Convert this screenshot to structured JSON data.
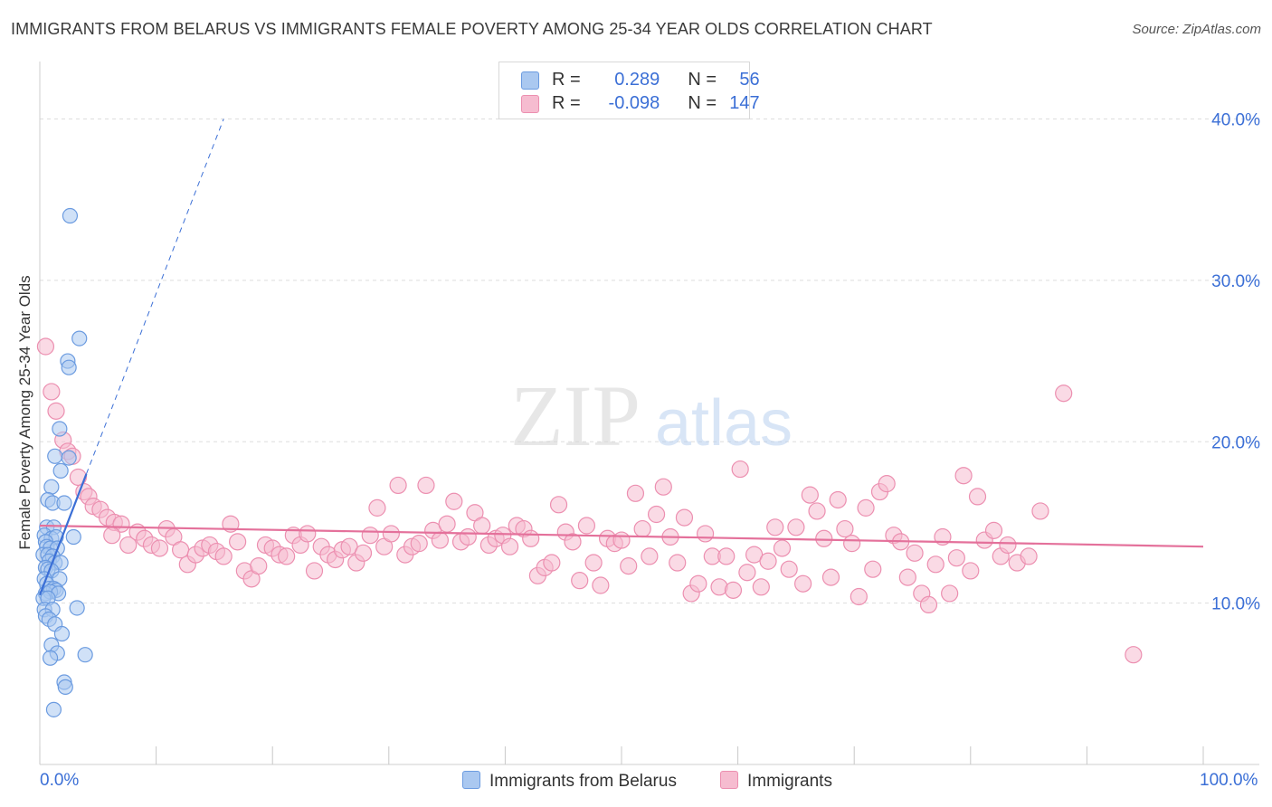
{
  "title": "IMMIGRANTS FROM BELARUS VS IMMIGRANTS FEMALE POVERTY AMONG 25-34 YEAR OLDS CORRELATION CHART",
  "source": "Source: ZipAtlas.com",
  "watermark": {
    "zip": "ZIP",
    "atlas": "atlas"
  },
  "legend": {
    "belarus": {
      "r_label": "R =",
      "r_value": "0.289",
      "n_label": "N =",
      "n_value": "56"
    },
    "immigrants": {
      "r_label": "R =",
      "r_value": "-0.098",
      "n_label": "N =",
      "n_value": "147"
    }
  },
  "bottom_legend": {
    "belarus": "Immigrants from Belarus",
    "immigrants": "Immigrants"
  },
  "colors": {
    "belarus_fill": "#aac8f0",
    "belarus_stroke": "#6b9be0",
    "belarus_line": "#3b6fd6",
    "immigrants_fill": "#f6bcd0",
    "immigrants_stroke": "#ec8fb0",
    "immigrants_line": "#e4719b",
    "tick_label": "#3b6fd6",
    "grid": "#dddddd"
  },
  "chart_data": {
    "type": "scatter",
    "title": "IMMIGRANTS FROM BELARUS VS IMMIGRANTS FEMALE POVERTY AMONG 25-34 YEAR OLDS CORRELATION CHART",
    "xlabel": "",
    "ylabel": "Female Poverty Among 25-34 Year Olds",
    "xlim": [
      0,
      100
    ],
    "ylim": [
      0,
      43
    ],
    "x_tick_labels": [
      "0.0%",
      "100.0%"
    ],
    "y_ticks": [
      10,
      20,
      30,
      40
    ],
    "y_tick_labels": [
      "10.0%",
      "20.0%",
      "30.0%",
      "40.0%"
    ],
    "grid": true,
    "series": [
      {
        "name": "Immigrants from Belarus",
        "r": 0.289,
        "n": 56,
        "trend_solid": {
          "x": [
            0.0,
            4.0
          ],
          "y": [
            10.5,
            18.0
          ]
        },
        "trend_dashed": {
          "x": [
            4.0,
            15.8
          ],
          "y": [
            18.0,
            40.0
          ]
        },
        "points": [
          [
            2.6,
            34.0
          ],
          [
            3.4,
            26.4
          ],
          [
            2.4,
            25.0
          ],
          [
            2.5,
            24.6
          ],
          [
            1.7,
            20.8
          ],
          [
            1.3,
            19.1
          ],
          [
            2.5,
            19.0
          ],
          [
            1.8,
            18.2
          ],
          [
            1.0,
            17.2
          ],
          [
            0.7,
            16.4
          ],
          [
            1.1,
            16.2
          ],
          [
            2.1,
            16.2
          ],
          [
            0.6,
            14.7
          ],
          [
            1.2,
            14.7
          ],
          [
            0.4,
            14.2
          ],
          [
            1.0,
            14.0
          ],
          [
            1.4,
            14.1
          ],
          [
            2.9,
            14.1
          ],
          [
            0.5,
            13.8
          ],
          [
            0.6,
            13.5
          ],
          [
            0.9,
            13.4
          ],
          [
            1.5,
            13.4
          ],
          [
            0.3,
            13.0
          ],
          [
            0.7,
            13.0
          ],
          [
            1.1,
            12.9
          ],
          [
            0.8,
            12.6
          ],
          [
            1.3,
            12.5
          ],
          [
            1.8,
            12.5
          ],
          [
            0.5,
            12.2
          ],
          [
            0.7,
            12.1
          ],
          [
            1.0,
            12.0
          ],
          [
            0.4,
            11.5
          ],
          [
            1.7,
            11.5
          ],
          [
            0.6,
            11.2
          ],
          [
            0.8,
            10.9
          ],
          [
            1.2,
            10.9
          ],
          [
            1.4,
            10.8
          ],
          [
            0.5,
            10.6
          ],
          [
            0.9,
            10.7
          ],
          [
            1.6,
            10.6
          ],
          [
            0.3,
            10.3
          ],
          [
            0.7,
            10.3
          ],
          [
            0.4,
            9.6
          ],
          [
            1.1,
            9.6
          ],
          [
            3.2,
            9.7
          ],
          [
            0.5,
            9.2
          ],
          [
            0.8,
            9.0
          ],
          [
            1.3,
            8.7
          ],
          [
            1.9,
            8.1
          ],
          [
            1.0,
            7.4
          ],
          [
            1.5,
            6.9
          ],
          [
            3.9,
            6.8
          ],
          [
            0.9,
            6.6
          ],
          [
            2.1,
            5.1
          ],
          [
            2.2,
            4.8
          ],
          [
            1.2,
            3.4
          ]
        ]
      },
      {
        "name": "Immigrants",
        "r": -0.098,
        "n": 147,
        "trend": {
          "x": [
            0,
            100
          ],
          "y": [
            14.8,
            13.5
          ]
        },
        "points": [
          [
            0.5,
            25.9
          ],
          [
            1.0,
            23.1
          ],
          [
            1.4,
            21.9
          ],
          [
            2.0,
            20.1
          ],
          [
            2.4,
            19.4
          ],
          [
            2.8,
            19.1
          ],
          [
            3.3,
            17.8
          ],
          [
            3.8,
            16.9
          ],
          [
            4.2,
            16.6
          ],
          [
            4.6,
            16.0
          ],
          [
            5.2,
            15.8
          ],
          [
            5.8,
            15.3
          ],
          [
            6.4,
            15.0
          ],
          [
            7.0,
            14.9
          ],
          [
            6.2,
            14.2
          ],
          [
            7.6,
            13.6
          ],
          [
            8.4,
            14.4
          ],
          [
            9.0,
            14.0
          ],
          [
            9.6,
            13.6
          ],
          [
            10.3,
            13.4
          ],
          [
            10.9,
            14.6
          ],
          [
            11.5,
            14.1
          ],
          [
            12.1,
            13.3
          ],
          [
            12.7,
            12.4
          ],
          [
            13.4,
            13.0
          ],
          [
            14.0,
            13.4
          ],
          [
            14.6,
            13.6
          ],
          [
            15.2,
            13.2
          ],
          [
            15.8,
            12.9
          ],
          [
            16.4,
            14.9
          ],
          [
            17.0,
            13.8
          ],
          [
            17.6,
            12.0
          ],
          [
            18.2,
            11.5
          ],
          [
            18.8,
            12.3
          ],
          [
            19.4,
            13.6
          ],
          [
            20.0,
            13.4
          ],
          [
            20.6,
            13.0
          ],
          [
            21.2,
            12.9
          ],
          [
            21.8,
            14.2
          ],
          [
            22.4,
            13.6
          ],
          [
            23.0,
            14.3
          ],
          [
            23.6,
            12.0
          ],
          [
            24.2,
            13.5
          ],
          [
            24.8,
            13.0
          ],
          [
            25.4,
            12.7
          ],
          [
            26.0,
            13.3
          ],
          [
            26.6,
            13.5
          ],
          [
            27.2,
            12.5
          ],
          [
            27.8,
            13.1
          ],
          [
            28.4,
            14.2
          ],
          [
            29.0,
            15.9
          ],
          [
            29.6,
            13.5
          ],
          [
            30.2,
            14.3
          ],
          [
            30.8,
            17.3
          ],
          [
            31.4,
            13.0
          ],
          [
            32.0,
            13.5
          ],
          [
            32.6,
            13.7
          ],
          [
            33.2,
            17.3
          ],
          [
            33.8,
            14.5
          ],
          [
            34.4,
            13.9
          ],
          [
            35.0,
            14.9
          ],
          [
            35.6,
            16.3
          ],
          [
            36.2,
            13.8
          ],
          [
            36.8,
            14.1
          ],
          [
            37.4,
            15.6
          ],
          [
            38.0,
            14.8
          ],
          [
            38.6,
            13.6
          ],
          [
            39.2,
            14.0
          ],
          [
            39.8,
            14.2
          ],
          [
            40.4,
            13.5
          ],
          [
            41.0,
            14.8
          ],
          [
            41.6,
            14.6
          ],
          [
            42.2,
            14.0
          ],
          [
            42.8,
            11.7
          ],
          [
            43.4,
            12.2
          ],
          [
            44.0,
            12.5
          ],
          [
            44.6,
            16.1
          ],
          [
            45.2,
            14.4
          ],
          [
            45.8,
            13.8
          ],
          [
            46.4,
            11.4
          ],
          [
            47.0,
            14.8
          ],
          [
            47.6,
            12.5
          ],
          [
            48.2,
            11.1
          ],
          [
            48.8,
            14.0
          ],
          [
            49.4,
            13.7
          ],
          [
            50.0,
            13.9
          ],
          [
            50.6,
            12.3
          ],
          [
            51.2,
            16.8
          ],
          [
            51.8,
            14.6
          ],
          [
            52.4,
            12.9
          ],
          [
            53.0,
            15.5
          ],
          [
            53.6,
            17.2
          ],
          [
            54.2,
            14.1
          ],
          [
            54.8,
            12.5
          ],
          [
            55.4,
            15.3
          ],
          [
            56.0,
            10.6
          ],
          [
            56.6,
            11.2
          ],
          [
            57.2,
            14.3
          ],
          [
            57.8,
            12.9
          ],
          [
            58.4,
            11.0
          ],
          [
            59.0,
            12.9
          ],
          [
            59.6,
            10.8
          ],
          [
            60.2,
            18.3
          ],
          [
            60.8,
            11.9
          ],
          [
            61.4,
            13.0
          ],
          [
            62.0,
            11.0
          ],
          [
            62.6,
            12.6
          ],
          [
            63.2,
            14.7
          ],
          [
            63.8,
            13.4
          ],
          [
            64.4,
            12.1
          ],
          [
            65.0,
            14.7
          ],
          [
            65.6,
            11.2
          ],
          [
            66.2,
            16.7
          ],
          [
            66.8,
            15.7
          ],
          [
            67.4,
            14.0
          ],
          [
            68.0,
            11.6
          ],
          [
            68.6,
            16.4
          ],
          [
            69.2,
            14.6
          ],
          [
            69.8,
            13.7
          ],
          [
            70.4,
            10.4
          ],
          [
            71.0,
            15.9
          ],
          [
            71.6,
            12.1
          ],
          [
            72.2,
            16.9
          ],
          [
            72.8,
            17.4
          ],
          [
            73.4,
            14.2
          ],
          [
            74.0,
            13.8
          ],
          [
            74.6,
            11.6
          ],
          [
            75.2,
            13.1
          ],
          [
            75.8,
            10.6
          ],
          [
            76.4,
            9.9
          ],
          [
            77.0,
            12.4
          ],
          [
            77.6,
            14.1
          ],
          [
            78.2,
            10.6
          ],
          [
            78.8,
            12.8
          ],
          [
            79.4,
            17.9
          ],
          [
            80.0,
            12.0
          ],
          [
            80.6,
            16.6
          ],
          [
            81.2,
            13.9
          ],
          [
            82.0,
            14.5
          ],
          [
            82.6,
            12.9
          ],
          [
            83.2,
            13.6
          ],
          [
            84.0,
            12.5
          ],
          [
            85.0,
            12.9
          ],
          [
            86.0,
            15.7
          ],
          [
            88.0,
            23.0
          ],
          [
            94.0,
            6.8
          ]
        ]
      }
    ]
  }
}
